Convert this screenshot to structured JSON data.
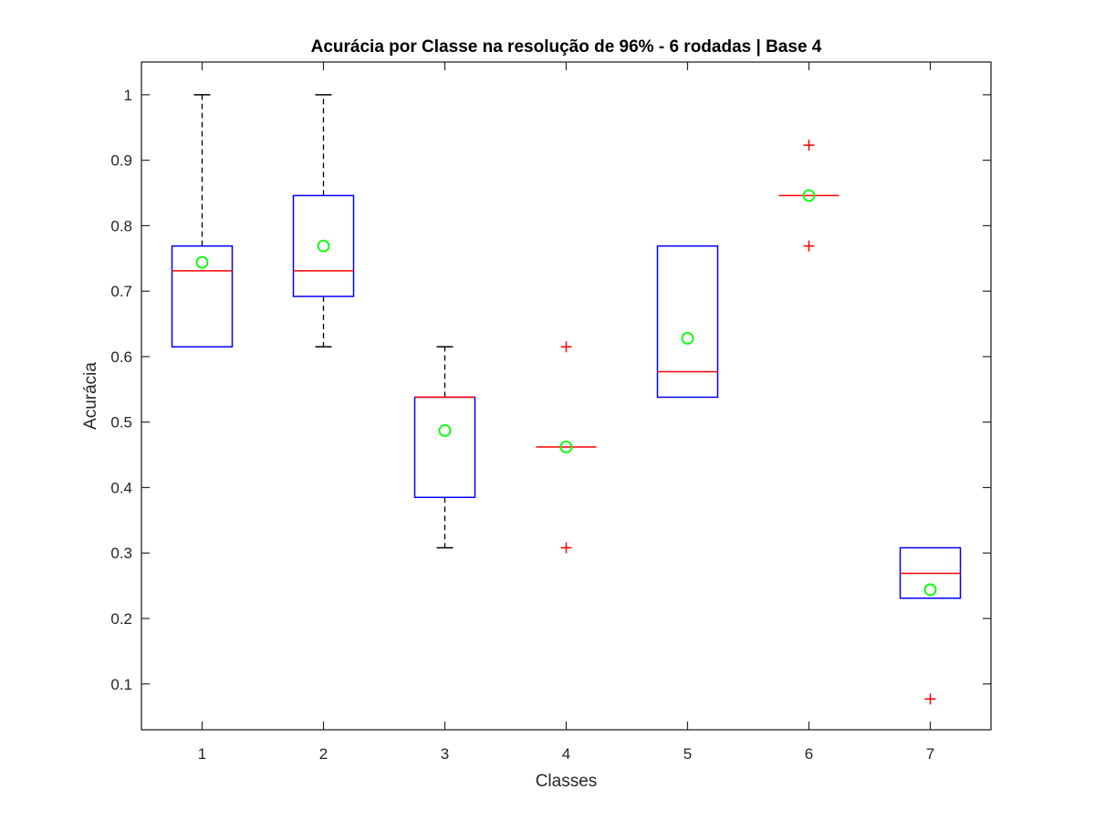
{
  "chart_data": {
    "type": "box",
    "title": "Acurácia por Classe na resolução de 96% - 6 rodadas | Base 4",
    "xlabel": "Classes",
    "ylabel": "Acurácia",
    "categories": [
      "1",
      "2",
      "3",
      "4",
      "5",
      "6",
      "7"
    ],
    "xlim": [
      0.5,
      7.5
    ],
    "ylim": [
      0.03,
      1.05
    ],
    "yticks": [
      0.1,
      0.2,
      0.3,
      0.4,
      0.5,
      0.6,
      0.7,
      0.8,
      0.9,
      1
    ],
    "ytick_labels": [
      "0.1",
      "0.2",
      "0.3",
      "0.4",
      "0.5",
      "0.6",
      "0.7",
      "0.8",
      "0.9",
      "1"
    ],
    "grid": false,
    "boxes": [
      {
        "class": "1",
        "q1": 0.615,
        "median": 0.731,
        "q3": 0.769,
        "whisker_low": 0.615,
        "whisker_high": 1.0,
        "mean": 0.744,
        "outliers": []
      },
      {
        "class": "2",
        "q1": 0.692,
        "median": 0.731,
        "q3": 0.846,
        "whisker_low": 0.615,
        "whisker_high": 1.0,
        "mean": 0.769,
        "outliers": []
      },
      {
        "class": "3",
        "q1": 0.385,
        "median": 0.538,
        "q3": 0.538,
        "whisker_low": 0.308,
        "whisker_high": 0.615,
        "mean": 0.487,
        "outliers": []
      },
      {
        "class": "4",
        "q1": 0.462,
        "median": 0.462,
        "q3": 0.462,
        "whisker_low": 0.462,
        "whisker_high": 0.462,
        "mean": 0.462,
        "outliers": [
          0.615,
          0.308
        ]
      },
      {
        "class": "5",
        "q1": 0.538,
        "median": 0.577,
        "q3": 0.769,
        "whisker_low": 0.538,
        "whisker_high": 0.769,
        "mean": 0.628,
        "outliers": []
      },
      {
        "class": "6",
        "q1": 0.846,
        "median": 0.846,
        "q3": 0.846,
        "whisker_low": 0.846,
        "whisker_high": 0.846,
        "mean": 0.846,
        "outliers": [
          0.923,
          0.769
        ]
      },
      {
        "class": "7",
        "q1": 0.231,
        "median": 0.269,
        "q3": 0.308,
        "whisker_low": 0.231,
        "whisker_high": 0.308,
        "mean": 0.244,
        "outliers": [
          0.077
        ]
      }
    ],
    "colors": {
      "box": "#0000ff",
      "median": "#ff0000",
      "whisker": "#000000",
      "mean_marker": "#00ff00",
      "outlier": "#ff0000",
      "axes": "#262626"
    }
  }
}
